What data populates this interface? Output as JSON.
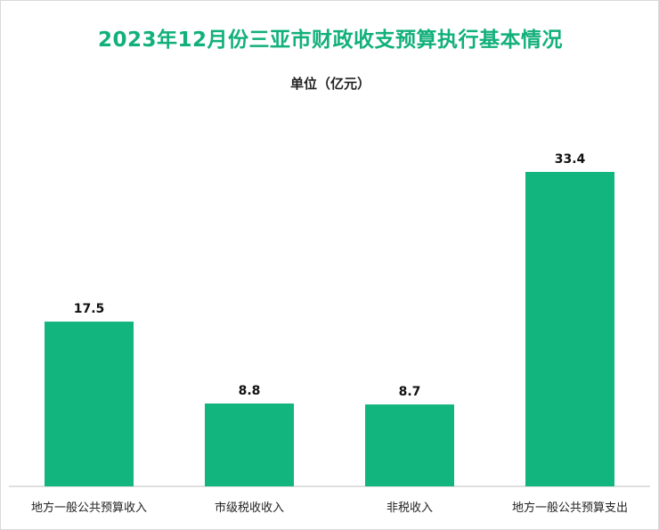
{
  "title": "2023年12月份三亚市财政收支预算执行基本情况",
  "unit": "单位（亿元）",
  "colors": {
    "title": "#12b07a",
    "bar": "#12b57d",
    "axis": "#bfbfbf"
  },
  "chart_data": {
    "type": "bar",
    "title": "2023年12月份三亚市财政收支预算执行基本情况",
    "ylabel": "单位（亿元）",
    "xlabel": "",
    "categories": [
      "地方一般公共预算收入",
      "市级税收收入",
      "非税收入",
      "地方一般公共预算支出"
    ],
    "values": [
      17.5,
      8.8,
      8.7,
      33.4
    ],
    "data_labels": [
      "17.5",
      "8.8",
      "8.7",
      "33.4"
    ],
    "ylim": [
      0,
      33.4
    ],
    "grid": false,
    "legend": "none"
  }
}
